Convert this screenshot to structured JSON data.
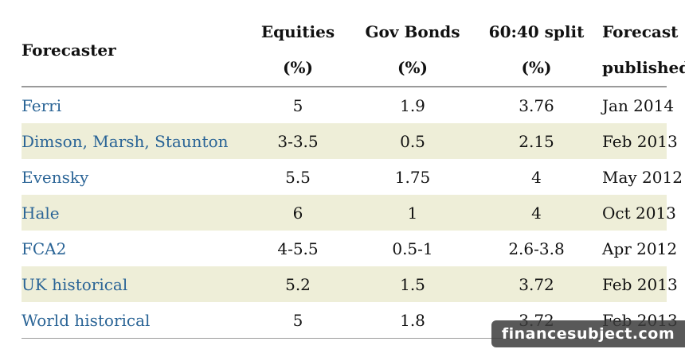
{
  "table": {
    "headers": [
      {
        "lines": [
          "Forecaster"
        ]
      },
      {
        "lines": [
          "Equities",
          "(%)"
        ]
      },
      {
        "lines": [
          "Gov Bonds",
          "(%)"
        ]
      },
      {
        "lines": [
          "60:40 split",
          "(%)"
        ]
      },
      {
        "lines": [
          "Forecast",
          "published"
        ]
      }
    ],
    "rows": [
      {
        "forecaster": "Ferri",
        "equities": "5",
        "gov_bonds": "1.9",
        "split": "3.76",
        "published": "Jan 2014"
      },
      {
        "forecaster": "Dimson, Marsh, Staunton",
        "equities": "3-3.5",
        "gov_bonds": "0.5",
        "split": "2.15",
        "published": "Feb 2013"
      },
      {
        "forecaster": "Evensky",
        "equities": "5.5",
        "gov_bonds": "1.75",
        "split": "4",
        "published": "May 2012"
      },
      {
        "forecaster": "Hale",
        "equities": "6",
        "gov_bonds": "1",
        "split": "4",
        "published": "Oct 2013"
      },
      {
        "forecaster": "FCA2",
        "equities": "4-5.5",
        "gov_bonds": "0.5-1",
        "split": "2.6-3.8",
        "published": "Apr 2012"
      },
      {
        "forecaster": "UK historical",
        "equities": "5.2",
        "gov_bonds": "1.5",
        "split": "3.72",
        "published": "Feb 2013"
      },
      {
        "forecaster": "World historical",
        "equities": "5",
        "gov_bonds": "1.8",
        "split": "3.72",
        "published": "Feb 2013"
      }
    ]
  },
  "colors": {
    "link": "#2a6496",
    "row_shade": "#eeeed8",
    "rule": "#9a9a9a"
  },
  "watermark": {
    "text": "financesubject.com"
  }
}
